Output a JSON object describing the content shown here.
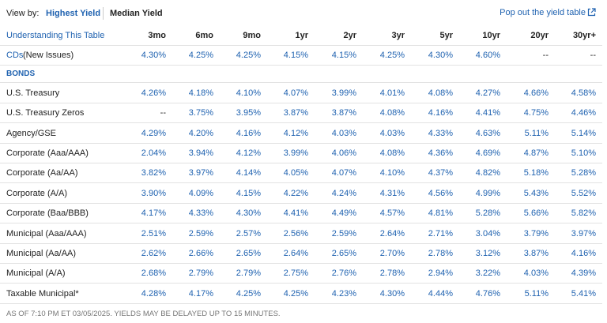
{
  "view_by": {
    "label": "View by:",
    "options": [
      "Highest Yield",
      "Median Yield"
    ]
  },
  "popout": "Pop out the yield table",
  "table": {
    "header": [
      "Understanding This Table",
      "3mo",
      "6mo",
      "9mo",
      "1yr",
      "2yr",
      "3yr",
      "5yr",
      "10yr",
      "20yr",
      "30yr+"
    ],
    "cds": {
      "link": "CDs",
      "label": "(New Issues)",
      "values": [
        "4.30%",
        "4.25%",
        "4.25%",
        "4.15%",
        "4.15%",
        "4.25%",
        "4.30%",
        "4.60%",
        "--",
        "--"
      ]
    },
    "section": "BONDS",
    "rows": [
      {
        "label": "U.S. Treasury",
        "values": [
          "4.26%",
          "4.18%",
          "4.10%",
          "4.07%",
          "3.99%",
          "4.01%",
          "4.08%",
          "4.27%",
          "4.66%",
          "4.58%"
        ]
      },
      {
        "label": "U.S. Treasury Zeros",
        "values": [
          "--",
          "3.75%",
          "3.95%",
          "3.87%",
          "3.87%",
          "4.08%",
          "4.16%",
          "4.41%",
          "4.75%",
          "4.46%"
        ]
      },
      {
        "label": "Agency/GSE",
        "values": [
          "4.29%",
          "4.20%",
          "4.16%",
          "4.12%",
          "4.03%",
          "4.03%",
          "4.33%",
          "4.63%",
          "5.11%",
          "5.14%"
        ]
      },
      {
        "label": "Corporate (Aaa/AAA)",
        "values": [
          "2.04%",
          "3.94%",
          "4.12%",
          "3.99%",
          "4.06%",
          "4.08%",
          "4.36%",
          "4.69%",
          "4.87%",
          "5.10%"
        ]
      },
      {
        "label": "Corporate (Aa/AA)",
        "values": [
          "3.82%",
          "3.97%",
          "4.14%",
          "4.05%",
          "4.07%",
          "4.10%",
          "4.37%",
          "4.82%",
          "5.18%",
          "5.28%"
        ]
      },
      {
        "label": "Corporate (A/A)",
        "values": [
          "3.90%",
          "4.09%",
          "4.15%",
          "4.22%",
          "4.24%",
          "4.31%",
          "4.56%",
          "4.99%",
          "5.43%",
          "5.52%"
        ]
      },
      {
        "label": "Corporate (Baa/BBB)",
        "values": [
          "4.17%",
          "4.33%",
          "4.30%",
          "4.41%",
          "4.49%",
          "4.57%",
          "4.81%",
          "5.28%",
          "5.66%",
          "5.82%"
        ]
      },
      {
        "label": "Municipal (Aaa/AAA)",
        "values": [
          "2.51%",
          "2.59%",
          "2.57%",
          "2.56%",
          "2.59%",
          "2.64%",
          "2.71%",
          "3.04%",
          "3.79%",
          "3.97%"
        ]
      },
      {
        "label": "Municipal (Aa/AA)",
        "values": [
          "2.62%",
          "2.66%",
          "2.65%",
          "2.64%",
          "2.65%",
          "2.70%",
          "2.78%",
          "3.12%",
          "3.87%",
          "4.16%"
        ]
      },
      {
        "label": "Municipal (A/A)",
        "values": [
          "2.68%",
          "2.79%",
          "2.79%",
          "2.75%",
          "2.76%",
          "2.78%",
          "2.94%",
          "3.22%",
          "4.03%",
          "4.39%"
        ]
      },
      {
        "label": "Taxable Municipal*",
        "values": [
          "4.28%",
          "4.17%",
          "4.25%",
          "4.25%",
          "4.23%",
          "4.30%",
          "4.44%",
          "4.76%",
          "5.11%",
          "5.41%"
        ]
      }
    ]
  },
  "footer": "AS OF 7:10 PM ET 03/05/2025. YIELDS MAY BE DELAYED UP TO 15 MINUTES."
}
